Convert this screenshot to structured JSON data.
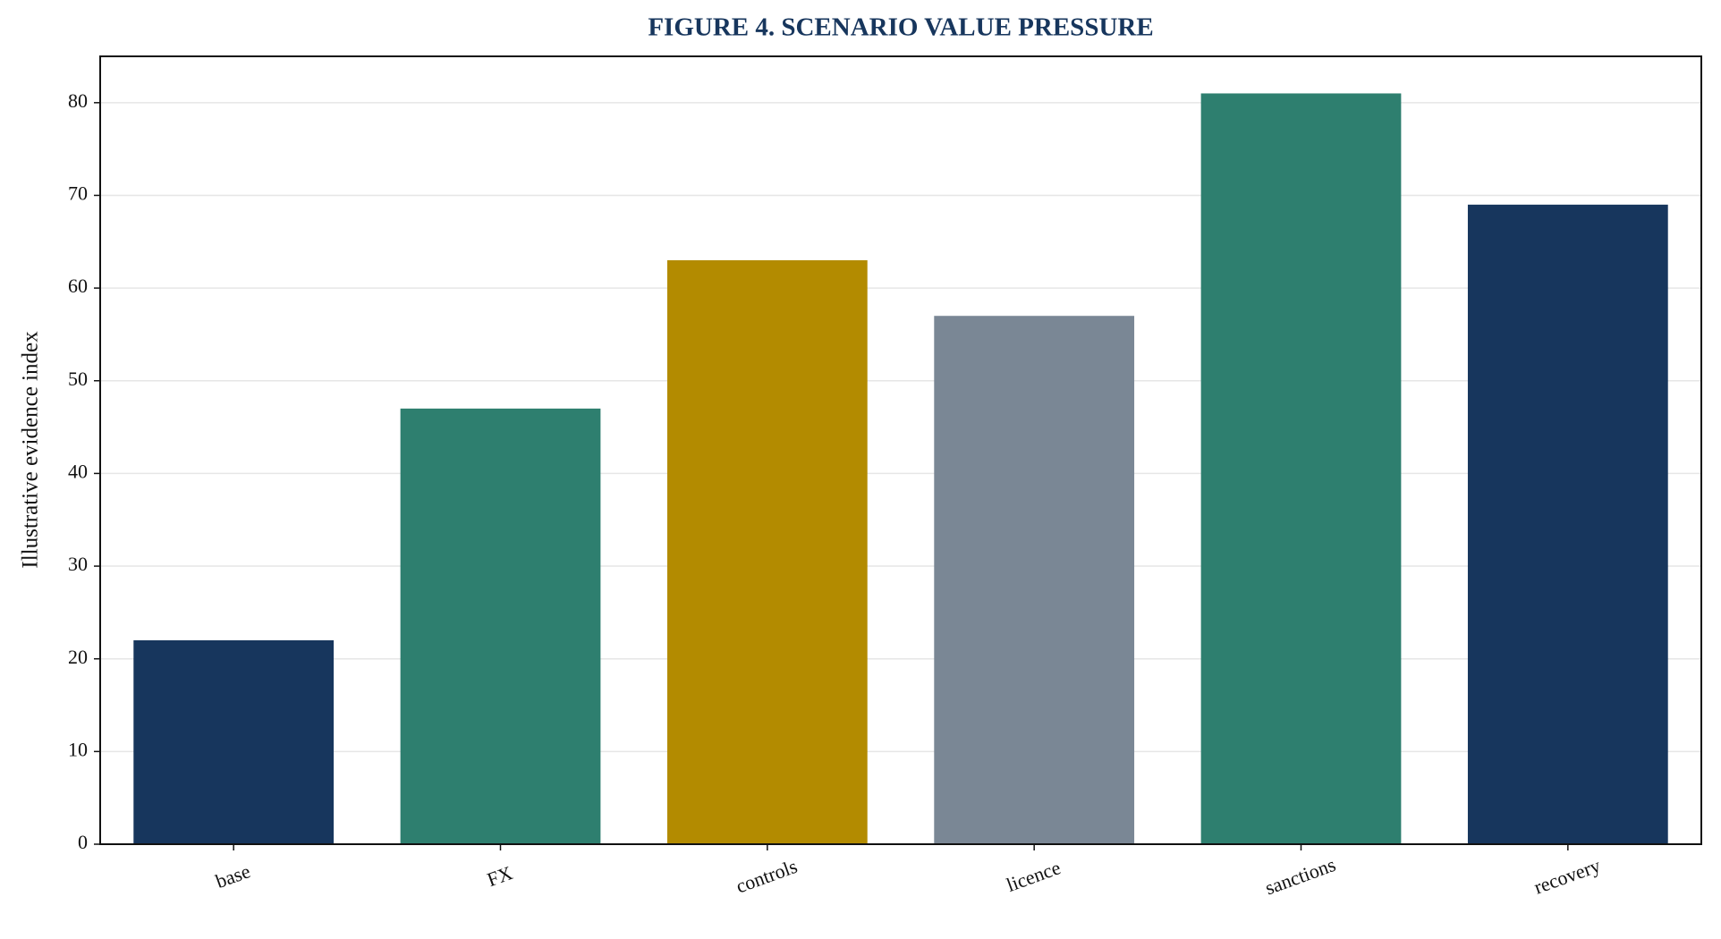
{
  "chart_data": {
    "type": "bar",
    "title": "FIGURE 4. SCENARIO VALUE PRESSURE",
    "y_label": "Illustrative evidence index",
    "categories": [
      "base",
      "FX",
      "controls",
      "licence",
      "sanctions",
      "recovery"
    ],
    "values": [
      22,
      47,
      63,
      57,
      81,
      69
    ],
    "colors": [
      "#17365d",
      "#2e7f6f",
      "#b38b00",
      "#7a8795",
      "#2e7f6f",
      "#17365d"
    ],
    "ylim": [
      0,
      85
    ],
    "yticks": [
      0,
      10,
      20,
      30,
      40,
      50,
      60,
      70,
      80
    ],
    "grid": true
  }
}
